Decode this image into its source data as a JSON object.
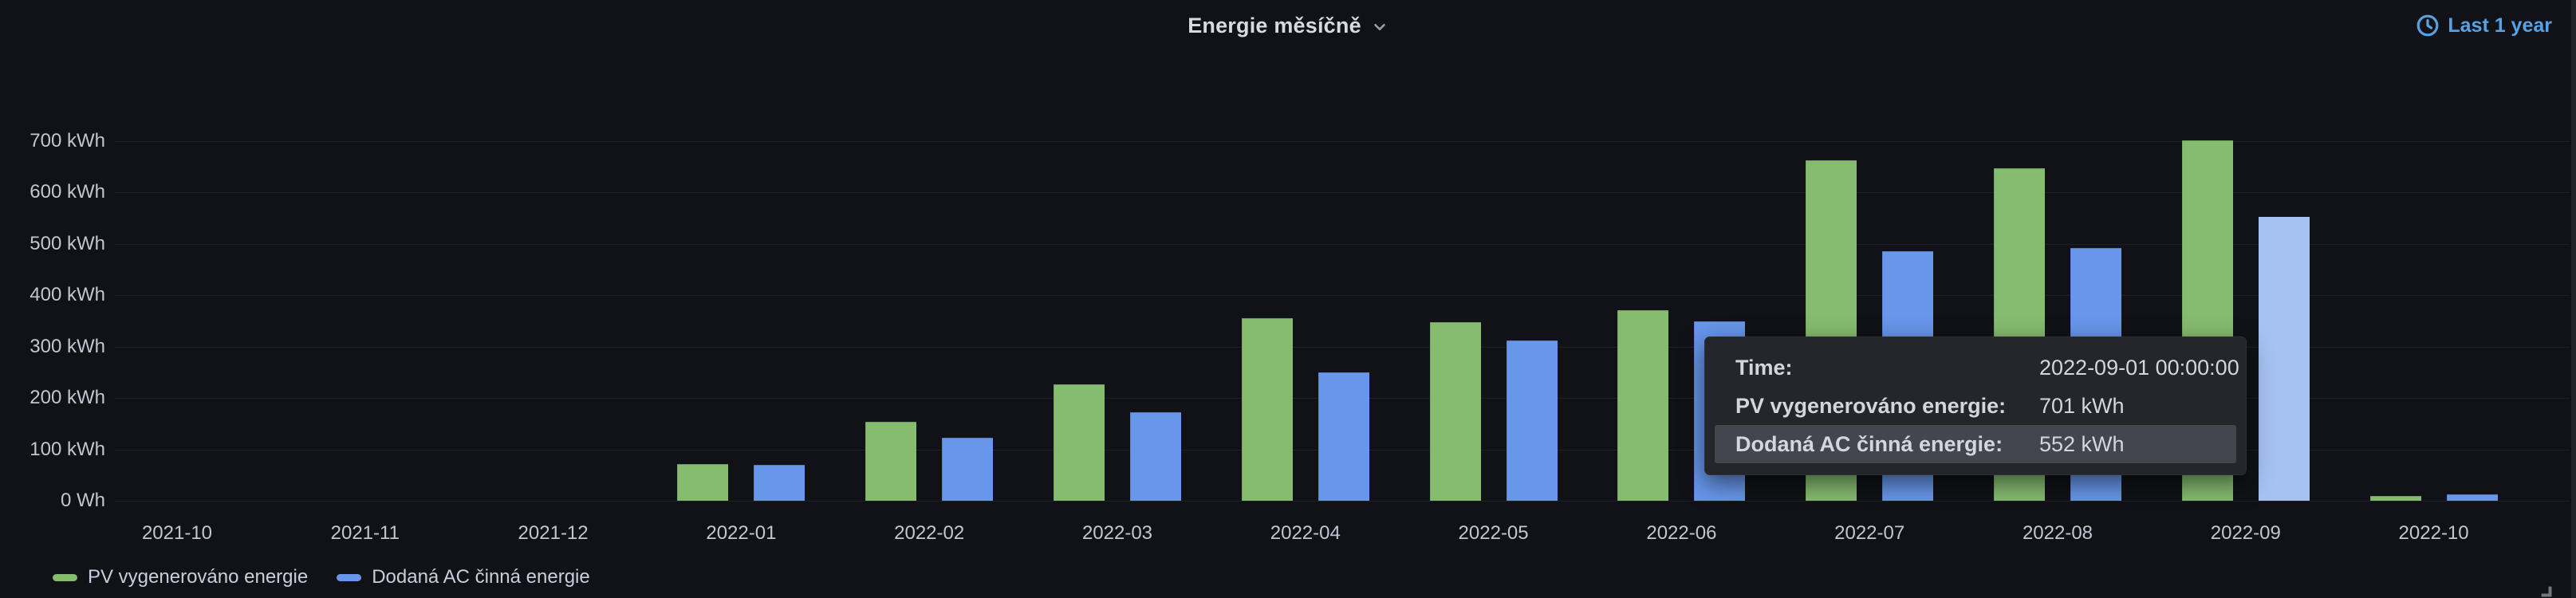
{
  "header": {
    "title": "Energie měsíčně",
    "time_range": "Last 1 year"
  },
  "chart_data": {
    "type": "bar",
    "title": "Energie měsíčně",
    "unit": "kWh",
    "categories": [
      "2021-10",
      "2021-11",
      "2021-12",
      "2022-01",
      "2022-02",
      "2022-03",
      "2022-04",
      "2022-05",
      "2022-06",
      "2022-07",
      "2022-08",
      "2022-09",
      "2022-10"
    ],
    "series": [
      {
        "name": "PV vygenerováno energie",
        "color": "#85BC70",
        "values": [
          null,
          null,
          null,
          72,
          154,
          226,
          355,
          347,
          371,
          663,
          647,
          701,
          9
        ]
      },
      {
        "name": "Dodaná AC činná energie",
        "color": "#6796EA",
        "values": [
          null,
          null,
          null,
          70,
          122,
          172,
          250,
          312,
          349,
          486,
          492,
          552,
          13
        ]
      }
    ],
    "ylim": [
      0,
      700
    ],
    "ytick_step": 100,
    "ytick_labels": [
      "0 Wh",
      "100 kWh",
      "200 kWh",
      "300 kWh",
      "400 kWh",
      "500 kWh",
      "600 kWh",
      "700 kWh"
    ],
    "grid": true,
    "legend_position": "bottom-left",
    "highlight": {
      "series_index": 1,
      "category_index": 11,
      "color": "#A6C2F2"
    }
  },
  "legend": {
    "items": [
      {
        "label": "PV vygenerováno energie",
        "color": "#85BC70"
      },
      {
        "label": "Dodaná AC činná energie",
        "color": "#6796EA"
      }
    ]
  },
  "tooltip": {
    "rows": [
      {
        "label": "Time:",
        "value": "2022-09-01 00:00:00"
      },
      {
        "label": "PV vygenerováno energie:",
        "value": "701 kWh"
      },
      {
        "label": "Dodaná AC činná energie:",
        "value": "552 kWh"
      }
    ]
  }
}
